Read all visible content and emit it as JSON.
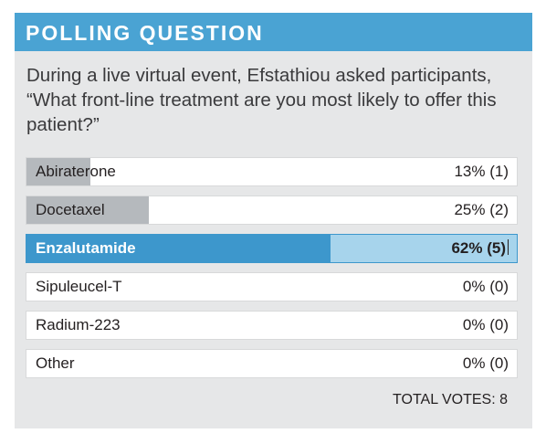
{
  "header": {
    "title": "POLLING QUESTION"
  },
  "question": "During a live virtual event, Efstathiou asked participants, “What front-line treatment are you most likely to offer this patient?”",
  "options": [
    {
      "label": "Abiraterone",
      "result": "13% (1)",
      "share": 0.13,
      "selected": false
    },
    {
      "label": "Docetaxel",
      "result": "25% (2)",
      "share": 0.25,
      "selected": false
    },
    {
      "label": "Enzalutamide",
      "result": "62% (5)",
      "share": 0.62,
      "selected": true
    },
    {
      "label": "Sipuleucel-T",
      "result": "0% (0)",
      "share": 0,
      "selected": false
    },
    {
      "label": "Radium-223",
      "result": "0% (0)",
      "share": 0,
      "selected": false
    },
    {
      "label": "Other",
      "result": "0% (0)",
      "share": 0,
      "selected": false
    }
  ],
  "total_votes": "TOTAL VOTES: 8",
  "colors": {
    "accent": "#4aa3d3",
    "selected_fill": "#3d97cc",
    "bar": "#b5b9bd",
    "panel": "#e6e7e8"
  }
}
